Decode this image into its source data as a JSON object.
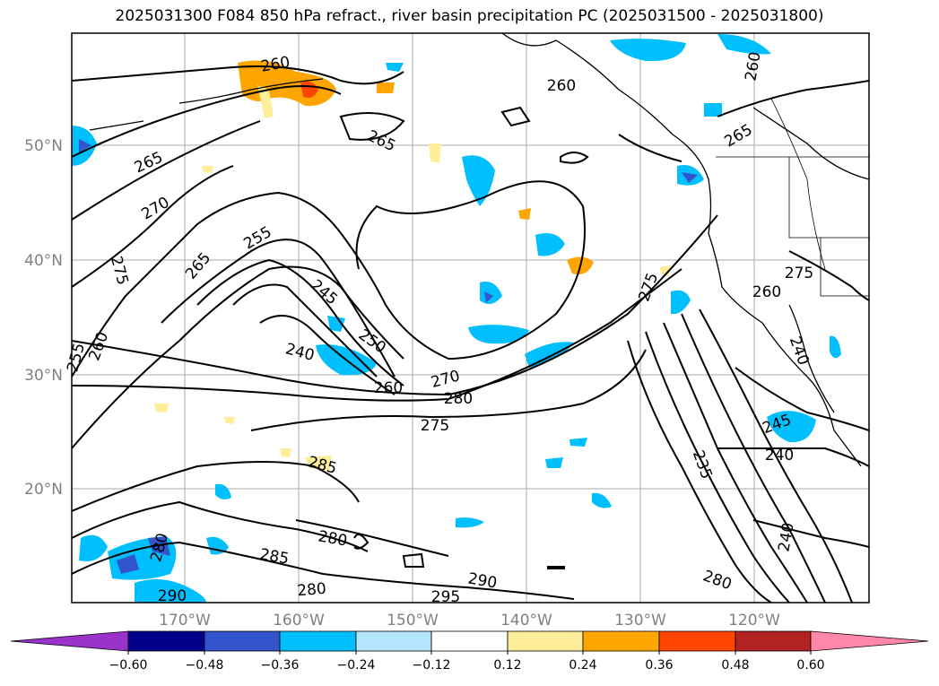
{
  "title": "2025031300 F084 850 hPa refract., river basin precipitation PC (2025031500 - 2025031800)",
  "map": {
    "lat_labels": [
      "50°N",
      "40°N",
      "30°N",
      "20°N"
    ],
    "lon_labels": [
      "170°W",
      "160°W",
      "150°W",
      "140°W",
      "130°W",
      "120°W"
    ],
    "contour_labels": [
      "260",
      "265",
      "270",
      "275",
      "255",
      "260",
      "265",
      "255",
      "245",
      "250",
      "240",
      "260",
      "270",
      "280",
      "275",
      "285",
      "280",
      "285",
      "280",
      "290",
      "295",
      "290",
      "280",
      "265",
      "260",
      "275",
      "265",
      "260",
      "240",
      "245",
      "240",
      "235",
      "240",
      "280",
      "260",
      "275"
    ]
  },
  "colorbar": {
    "colors": [
      "#9933cc",
      "#00008b",
      "#3355cc",
      "#00bfff",
      "#b3e5fc",
      "#ffffff",
      "#ffee99",
      "#ffa500",
      "#ff4500",
      "#b22222",
      "#ff88aa"
    ],
    "tick_labels": [
      "−0.60",
      "−0.48",
      "−0.36",
      "−0.24",
      "−0.12",
      "0.12",
      "0.24",
      "0.36",
      "0.48",
      "0.60"
    ]
  }
}
